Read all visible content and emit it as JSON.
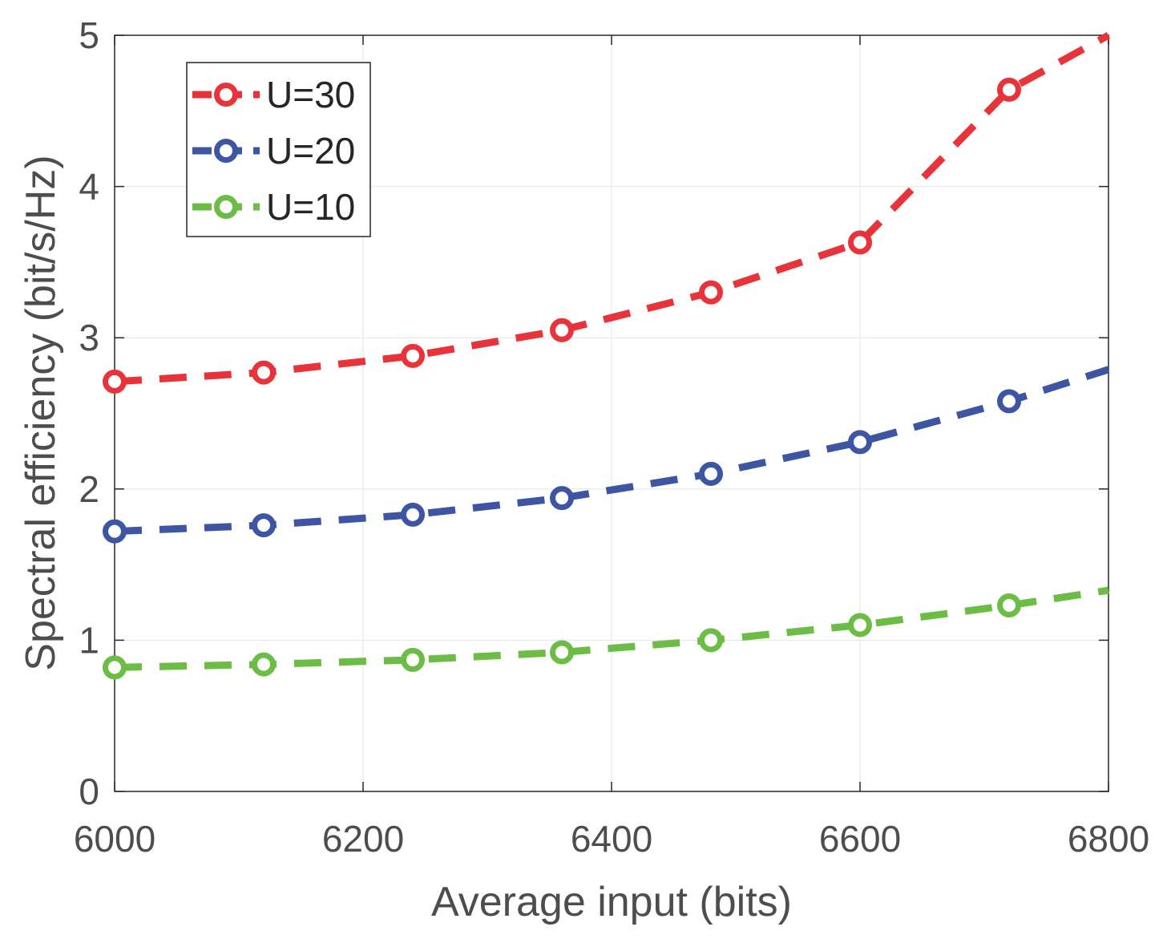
{
  "chart_data": {
    "type": "line",
    "title": "",
    "xlabel": "Average input (bits)",
    "ylabel": "Spectral efficiency (bit/s/Hz)",
    "xlim": [
      6000,
      6800
    ],
    "ylim": [
      0,
      5
    ],
    "xticks": [
      6000,
      6200,
      6400,
      6600,
      6800
    ],
    "yticks": [
      0,
      1,
      2,
      3,
      4,
      5
    ],
    "grid": true,
    "legend_position": "top-left",
    "x": [
      6000,
      6120,
      6240,
      6360,
      6480,
      6600,
      6720,
      6800
    ],
    "series": [
      {
        "name": "U=30",
        "color": "#e8333a",
        "marker": "circle",
        "line_style": "dashed",
        "values": [
          2.71,
          2.77,
          2.88,
          3.05,
          3.3,
          3.63,
          4.64,
          5.0
        ],
        "marker_indices": [
          0,
          1,
          2,
          3,
          4,
          5,
          6
        ]
      },
      {
        "name": "U=20",
        "color": "#3d55a3",
        "marker": "circle",
        "line_style": "dashed",
        "values": [
          1.72,
          1.76,
          1.83,
          1.94,
          2.1,
          2.31,
          2.58,
          2.79
        ],
        "marker_indices": [
          0,
          1,
          2,
          3,
          4,
          5,
          6
        ]
      },
      {
        "name": "U=10",
        "color": "#6cbd45",
        "marker": "circle",
        "line_style": "dashed",
        "values": [
          0.82,
          0.84,
          0.87,
          0.92,
          1.0,
          1.1,
          1.23,
          1.33
        ],
        "marker_indices": [
          0,
          1,
          2,
          3,
          4,
          5,
          6
        ]
      }
    ]
  }
}
